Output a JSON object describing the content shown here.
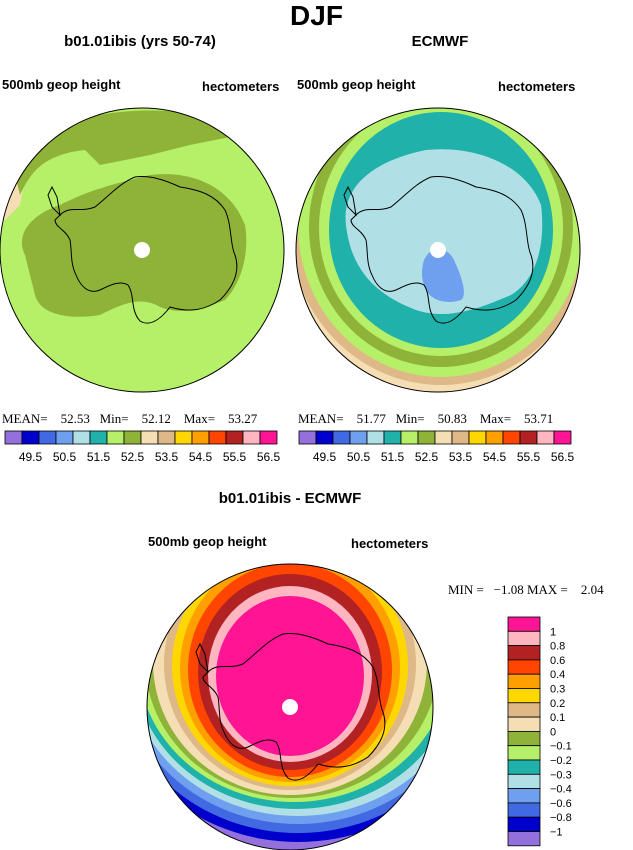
{
  "page": {
    "title": "DJF"
  },
  "chart_data": [
    {
      "type": "heatmap",
      "title": "b01.01ibis (yrs 50-74)",
      "left_label": "500mb geop height",
      "right_label": "hectometers",
      "stats": {
        "mean_label": "MEAN=",
        "mean": "52.53",
        "min_label": "Min=",
        "min": "52.12",
        "max_label": "Max=",
        "max": "53.27"
      },
      "levels": [
        "49.5",
        "50.5",
        "51.5",
        "52.5",
        "53.5",
        "54.5",
        "55.5",
        "56.5"
      ],
      "colors": [
        "#9370db",
        "#0000cd",
        "#4169e1",
        "#6f9fef",
        "#b0e0e6",
        "#20b2aa",
        "#b5f068",
        "#8fb339",
        "#f5deb3",
        "#deb887",
        "#ffd700",
        "#ff9f00",
        "#ff4500",
        "#b22222",
        "#ffb6c1",
        "#ff1493"
      ],
      "field_bands": [
        "#f5deb3",
        "#b5f068",
        "#8fb339"
      ]
    },
    {
      "type": "heatmap",
      "title": "ECMWF",
      "left_label": "500mb geop height",
      "right_label": "hectometers",
      "stats": {
        "mean_label": "MEAN=",
        "mean": "51.77",
        "min_label": "Min=",
        "min": "50.83",
        "max_label": "Max=",
        "max": "53.71"
      },
      "levels": [
        "49.5",
        "50.5",
        "51.5",
        "52.5",
        "53.5",
        "54.5",
        "55.5",
        "56.5"
      ],
      "colors": [
        "#9370db",
        "#0000cd",
        "#4169e1",
        "#6f9fef",
        "#b0e0e6",
        "#20b2aa",
        "#b5f068",
        "#8fb339",
        "#f5deb3",
        "#deb887",
        "#ffd700",
        "#ff9f00",
        "#ff4500",
        "#b22222",
        "#ffb6c1",
        "#ff1493"
      ],
      "field_bands": [
        "#ffd700",
        "#f5deb3",
        "#deb887",
        "#b5f068",
        "#8fb339",
        "#20b2aa",
        "#b0e0e6",
        "#6f9fef"
      ]
    },
    {
      "type": "heatmap",
      "title": "b01.01ibis - ECMWF",
      "left_label": "500mb geop height",
      "right_label": "hectometers",
      "stats": {
        "min_label": "MIN =",
        "min": "−1.08",
        "max_label": "MAX =",
        "max": "2.04"
      },
      "levels": [
        "1",
        "0.8",
        "0.6",
        "0.4",
        "0.3",
        "0.2",
        "0.1",
        "0",
        "−0.1",
        "−0.2",
        "−0.3",
        "−0.4",
        "−0.6",
        "−0.8",
        "−1"
      ],
      "colors": [
        "#ff1493",
        "#ffb6c1",
        "#b22222",
        "#ff4500",
        "#ff9f00",
        "#ffd700",
        "#deb887",
        "#f5deb3",
        "#8fb339",
        "#b5f068",
        "#20b2aa",
        "#b0e0e6",
        "#6f9fef",
        "#4169e1",
        "#0000cd",
        "#9370db"
      ]
    }
  ]
}
